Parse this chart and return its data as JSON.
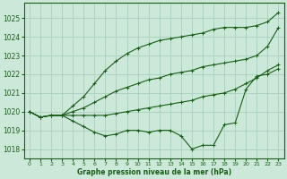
{
  "bg_color": "#cce8d8",
  "grid_color": "#aacfbe",
  "line_color": "#1a5c1a",
  "text_color": "#1a5c1a",
  "xlabel": "Graphe pression niveau de la mer (hPa)",
  "ylim": [
    1017.5,
    1025.8
  ],
  "xlim": [
    -0.5,
    23.5
  ],
  "yticks": [
    1018,
    1019,
    1020,
    1021,
    1022,
    1023,
    1024,
    1025
  ],
  "xticks": [
    0,
    1,
    2,
    3,
    4,
    5,
    6,
    7,
    8,
    9,
    10,
    11,
    12,
    13,
    14,
    15,
    16,
    17,
    18,
    19,
    20,
    21,
    22,
    23
  ],
  "series": [
    [
      1020.0,
      1019.7,
      1019.8,
      1019.8,
      1019.5,
      1019.2,
      1018.9,
      1018.7,
      1018.8,
      1019.0,
      1019.0,
      1018.9,
      1019.0,
      1019.0,
      1018.7,
      1018.0,
      1018.2,
      1018.2,
      1019.3,
      1019.4,
      1021.2,
      1021.9,
      1022.0,
      1022.3
    ],
    [
      1020.0,
      1019.7,
      1019.8,
      1019.8,
      1019.8,
      1019.8,
      1019.8,
      1019.8,
      1019.9,
      1020.0,
      1020.1,
      1020.2,
      1020.3,
      1020.4,
      1020.5,
      1020.6,
      1020.8,
      1020.9,
      1021.0,
      1021.2,
      1021.5,
      1021.8,
      1022.2,
      1022.5
    ],
    [
      1020.0,
      1019.7,
      1019.8,
      1019.8,
      1020.0,
      1020.2,
      1020.5,
      1020.8,
      1021.1,
      1021.3,
      1021.5,
      1021.7,
      1021.8,
      1022.0,
      1022.1,
      1022.2,
      1022.4,
      1022.5,
      1022.6,
      1022.7,
      1022.8,
      1023.0,
      1023.5,
      1024.5
    ],
    [
      1020.0,
      1019.7,
      1019.8,
      1019.8,
      1020.3,
      1020.8,
      1021.5,
      1022.2,
      1022.7,
      1023.1,
      1023.4,
      1023.6,
      1023.8,
      1023.9,
      1024.0,
      1024.1,
      1024.2,
      1024.4,
      1024.5,
      1024.5,
      1024.5,
      1024.6,
      1024.8,
      1025.3
    ]
  ]
}
